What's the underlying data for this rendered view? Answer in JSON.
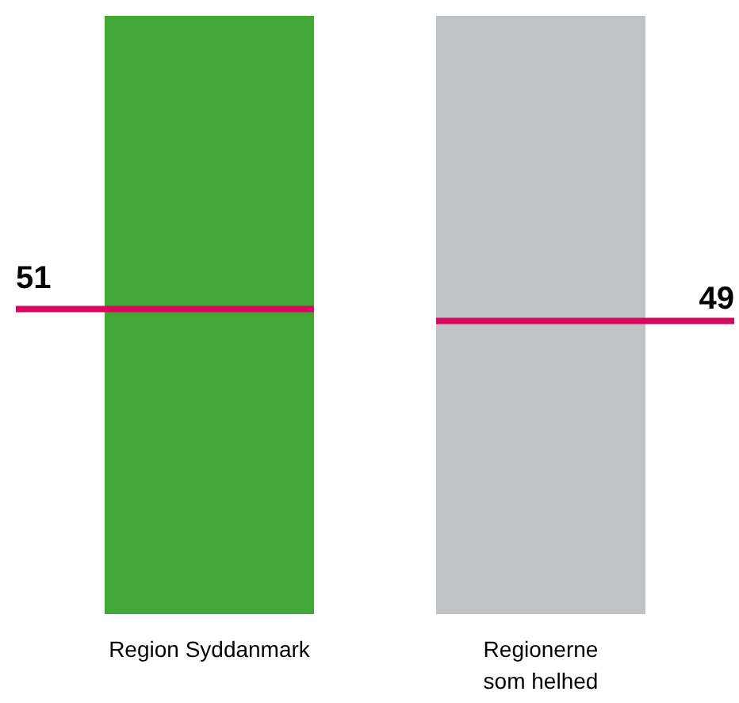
{
  "chart_data": {
    "type": "bar",
    "categories": [
      "Region Syddanmark",
      "Regionerne\nsom helhed"
    ],
    "series": [
      {
        "values": [
          100,
          100
        ],
        "colors": [
          "#43a737",
          "#c0c3c6"
        ]
      }
    ],
    "ylim": [
      0,
      100
    ],
    "tick_labels": "x",
    "ref_lines": [
      {
        "axis": "y",
        "value": 51,
        "label": "51",
        "color": "#d6085f"
      },
      {
        "axis": "y",
        "value": 49,
        "label": "49",
        "color": "#d6085f"
      }
    ]
  }
}
